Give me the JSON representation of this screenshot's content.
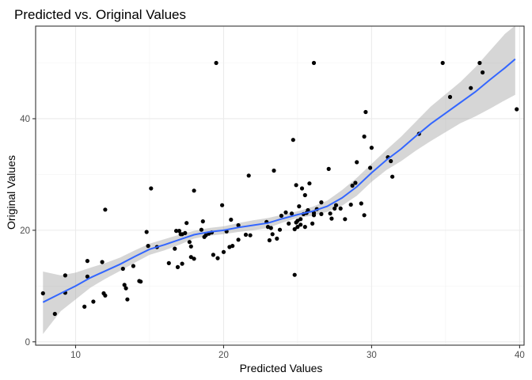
{
  "chart_data": {
    "type": "scatter",
    "title": "Predicted vs. Original Values",
    "xlabel": "Predicted Values",
    "ylabel": "Original Values",
    "xlim": [
      7.3,
      40.3
    ],
    "ylim": [
      -0.6,
      56.6
    ],
    "xticks": [
      10,
      20,
      30,
      40
    ],
    "yticks": [
      0,
      20,
      40
    ],
    "grid": true,
    "theme": "bw",
    "colors": {
      "points": "#000000",
      "smooth_line": "#3366FF",
      "confidence_band": "#999999",
      "panel_border": "#333333",
      "grid": "#ebebeb"
    },
    "points": [
      [
        7.8,
        8.7
      ],
      [
        8.6,
        5.0
      ],
      [
        9.3,
        8.8
      ],
      [
        9.3,
        11.9
      ],
      [
        10.6,
        6.3
      ],
      [
        10.8,
        11.7
      ],
      [
        10.8,
        14.5
      ],
      [
        11.2,
        7.2
      ],
      [
        11.8,
        14.3
      ],
      [
        11.9,
        8.7
      ],
      [
        12.0,
        8.3
      ],
      [
        12.0,
        23.7
      ],
      [
        13.2,
        13.1
      ],
      [
        13.3,
        10.2
      ],
      [
        13.4,
        9.6
      ],
      [
        13.5,
        7.6
      ],
      [
        13.9,
        13.6
      ],
      [
        14.3,
        10.9
      ],
      [
        14.4,
        10.8
      ],
      [
        14.8,
        19.7
      ],
      [
        14.9,
        17.2
      ],
      [
        15.1,
        27.5
      ],
      [
        15.5,
        17.0
      ],
      [
        16.3,
        14.1
      ],
      [
        16.7,
        16.7
      ],
      [
        16.8,
        19.9
      ],
      [
        16.9,
        13.4
      ],
      [
        17.0,
        19.9
      ],
      [
        17.1,
        19.3
      ],
      [
        17.2,
        19.3
      ],
      [
        17.2,
        14.0
      ],
      [
        17.4,
        19.5
      ],
      [
        17.5,
        21.3
      ],
      [
        17.7,
        17.9
      ],
      [
        17.8,
        17.1
      ],
      [
        17.8,
        15.2
      ],
      [
        18.0,
        14.9
      ],
      [
        18.0,
        27.1
      ],
      [
        18.5,
        20.1
      ],
      [
        18.6,
        21.6
      ],
      [
        18.7,
        18.8
      ],
      [
        18.8,
        19.1
      ],
      [
        19.0,
        19.4
      ],
      [
        19.2,
        19.6
      ],
      [
        19.3,
        15.6
      ],
      [
        19.5,
        50.0
      ],
      [
        19.6,
        15.0
      ],
      [
        19.9,
        24.5
      ],
      [
        20.0,
        16.1
      ],
      [
        20.2,
        19.8
      ],
      [
        20.4,
        17.0
      ],
      [
        20.5,
        21.9
      ],
      [
        20.6,
        17.2
      ],
      [
        21.0,
        20.9
      ],
      [
        21.0,
        18.3
      ],
      [
        21.5,
        19.2
      ],
      [
        21.7,
        29.8
      ],
      [
        21.8,
        19.1
      ],
      [
        22.9,
        21.5
      ],
      [
        23.0,
        20.6
      ],
      [
        23.1,
        18.2
      ],
      [
        23.2,
        20.4
      ],
      [
        23.3,
        19.3
      ],
      [
        23.4,
        30.7
      ],
      [
        23.6,
        18.5
      ],
      [
        23.8,
        20.1
      ],
      [
        23.9,
        22.6
      ],
      [
        24.2,
        23.2
      ],
      [
        24.4,
        21.2
      ],
      [
        24.6,
        23.0
      ],
      [
        24.7,
        36.2
      ],
      [
        24.8,
        20.2
      ],
      [
        24.8,
        12.0
      ],
      [
        24.9,
        21.4
      ],
      [
        24.9,
        28.1
      ],
      [
        25.0,
        20.6
      ],
      [
        25.0,
        21.7
      ],
      [
        25.1,
        24.3
      ],
      [
        25.2,
        21.0
      ],
      [
        25.2,
        22.0
      ],
      [
        25.3,
        27.5
      ],
      [
        25.4,
        22.9
      ],
      [
        25.5,
        20.6
      ],
      [
        25.5,
        26.3
      ],
      [
        25.6,
        23.1
      ],
      [
        25.7,
        23.6
      ],
      [
        25.8,
        28.4
      ],
      [
        26.0,
        21.2
      ],
      [
        26.1,
        22.7
      ],
      [
        26.1,
        23.1
      ],
      [
        26.1,
        50.0
      ],
      [
        26.3,
        23.8
      ],
      [
        26.6,
        25.0
      ],
      [
        26.6,
        22.9
      ],
      [
        27.1,
        31.0
      ],
      [
        27.2,
        23.0
      ],
      [
        27.3,
        22.1
      ],
      [
        27.5,
        23.9
      ],
      [
        27.6,
        24.5
      ],
      [
        27.9,
        23.9
      ],
      [
        28.2,
        22.0
      ],
      [
        28.6,
        24.6
      ],
      [
        28.7,
        28.0
      ],
      [
        28.9,
        28.5
      ],
      [
        29.0,
        32.2
      ],
      [
        29.3,
        24.8
      ],
      [
        29.5,
        22.7
      ],
      [
        29.5,
        36.8
      ],
      [
        29.6,
        41.2
      ],
      [
        29.9,
        31.2
      ],
      [
        30.0,
        34.8
      ],
      [
        31.1,
        33.1
      ],
      [
        31.3,
        32.4
      ],
      [
        31.4,
        29.6
      ],
      [
        33.2,
        37.3
      ],
      [
        34.8,
        50.0
      ],
      [
        35.3,
        43.9
      ],
      [
        36.7,
        45.5
      ],
      [
        37.3,
        50.0
      ],
      [
        37.5,
        48.3
      ],
      [
        39.8,
        41.7
      ]
    ],
    "smooth": {
      "method": "loess",
      "x": [
        7.8,
        9,
        10,
        11,
        12,
        13,
        14,
        15,
        16,
        17,
        18,
        19,
        20,
        21,
        22,
        23,
        24,
        25,
        26,
        27,
        28,
        29,
        30,
        31,
        32,
        33,
        34,
        35,
        36,
        37,
        38,
        39,
        39.7
      ],
      "y": [
        7.1,
        8.7,
        10.0,
        11.5,
        12.7,
        13.9,
        15.3,
        16.6,
        17.4,
        18.3,
        19.2,
        19.7,
        20.0,
        20.5,
        20.9,
        21.3,
        22.1,
        22.8,
        23.4,
        24.3,
        25.8,
        27.8,
        30.3,
        32.6,
        34.6,
        36.9,
        39.1,
        41.0,
        42.9,
        44.8,
        47.0,
        49.1,
        50.7
      ],
      "lower": [
        1.4,
        5.5,
        7.6,
        9.7,
        11.3,
        12.7,
        14.2,
        15.6,
        16.4,
        17.4,
        18.5,
        19.0,
        19.3,
        19.7,
        20.0,
        20.4,
        21.4,
        22.2,
        22.6,
        23.3,
        24.4,
        26.2,
        28.7,
        30.8,
        32.4,
        34.3,
        36.0,
        37.6,
        39.2,
        40.4,
        41.8,
        43.3,
        44.3
      ],
      "upper": [
        12.6,
        11.9,
        12.4,
        13.3,
        14.1,
        15.1,
        16.4,
        17.6,
        18.4,
        19.2,
        19.9,
        20.4,
        20.7,
        21.3,
        21.8,
        22.2,
        22.8,
        23.4,
        24.2,
        25.3,
        27.2,
        29.4,
        31.9,
        34.4,
        36.8,
        39.5,
        42.2,
        44.4,
        46.6,
        49.2,
        52.2,
        55.2,
        56.7
      ]
    }
  }
}
